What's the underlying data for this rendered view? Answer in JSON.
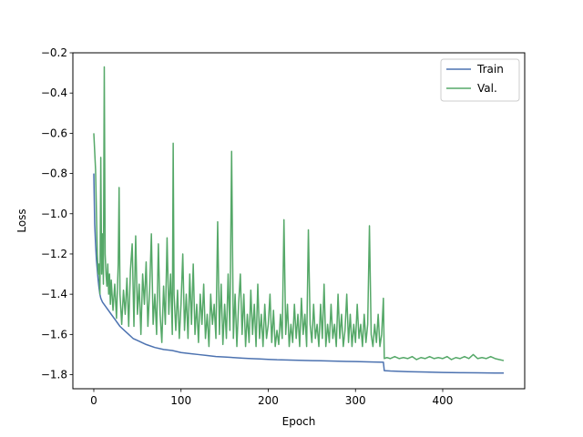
{
  "chart_data": {
    "type": "line",
    "title": "",
    "xlabel": "Epoch",
    "ylabel": "Loss",
    "xlim": [
      -24,
      494
    ],
    "ylim": [
      -1.87,
      -0.2
    ],
    "xticks": [
      0,
      100,
      200,
      300,
      400
    ],
    "yticks": [
      -1.8,
      -1.6,
      -1.4,
      -1.2,
      -1.0,
      -0.8,
      -0.6,
      -0.4,
      -0.2
    ],
    "ytick_labels": [
      "−1.8",
      "−1.6",
      "−1.4",
      "−1.2",
      "−1.0",
      "−0.8",
      "−0.6",
      "−0.4",
      "−0.2"
    ],
    "grid": false,
    "legend_position": "top-right",
    "series": [
      {
        "name": "Train",
        "color": "#4c72b0",
        "points": [
          [
            0,
            -0.8
          ],
          [
            1,
            -1.05
          ],
          [
            2,
            -1.15
          ],
          [
            3,
            -1.23
          ],
          [
            4,
            -1.28
          ],
          [
            5,
            -1.33
          ],
          [
            6,
            -1.37
          ],
          [
            7,
            -1.4
          ],
          [
            8,
            -1.42
          ],
          [
            10,
            -1.44
          ],
          [
            15,
            -1.47
          ],
          [
            20,
            -1.5
          ],
          [
            25,
            -1.53
          ],
          [
            30,
            -1.56
          ],
          [
            35,
            -1.58
          ],
          [
            40,
            -1.6
          ],
          [
            45,
            -1.62
          ],
          [
            50,
            -1.63
          ],
          [
            60,
            -1.65
          ],
          [
            70,
            -1.665
          ],
          [
            80,
            -1.675
          ],
          [
            90,
            -1.68
          ],
          [
            100,
            -1.69
          ],
          [
            110,
            -1.695
          ],
          [
            120,
            -1.7
          ],
          [
            130,
            -1.705
          ],
          [
            140,
            -1.71
          ],
          [
            150,
            -1.712
          ],
          [
            160,
            -1.715
          ],
          [
            170,
            -1.718
          ],
          [
            180,
            -1.72
          ],
          [
            190,
            -1.722
          ],
          [
            200,
            -1.724
          ],
          [
            210,
            -1.726
          ],
          [
            220,
            -1.727
          ],
          [
            230,
            -1.728
          ],
          [
            240,
            -1.729
          ],
          [
            250,
            -1.73
          ],
          [
            260,
            -1.731
          ],
          [
            270,
            -1.732
          ],
          [
            280,
            -1.733
          ],
          [
            290,
            -1.734
          ],
          [
            300,
            -1.735
          ],
          [
            310,
            -1.736
          ],
          [
            320,
            -1.737
          ],
          [
            332,
            -1.738
          ],
          [
            333,
            -1.78
          ],
          [
            340,
            -1.782
          ],
          [
            360,
            -1.785
          ],
          [
            380,
            -1.787
          ],
          [
            400,
            -1.789
          ],
          [
            420,
            -1.79
          ],
          [
            440,
            -1.791
          ],
          [
            460,
            -1.792
          ],
          [
            470,
            -1.792
          ]
        ]
      },
      {
        "name": "Val.",
        "color": "#55a868",
        "points": [
          [
            0,
            -0.6
          ],
          [
            2,
            -0.78
          ],
          [
            4,
            -1.2
          ],
          [
            5,
            -1.3
          ],
          [
            6,
            -1.25
          ],
          [
            7,
            -1.4
          ],
          [
            8,
            -0.72
          ],
          [
            9,
            -1.3
          ],
          [
            10,
            -1.1
          ],
          [
            11,
            -1.35
          ],
          [
            12,
            -0.27
          ],
          [
            13,
            -1.2
          ],
          [
            14,
            -1.3
          ],
          [
            15,
            -1.36
          ],
          [
            16,
            -1.25
          ],
          [
            17,
            -1.4
          ],
          [
            18,
            -1.3
          ],
          [
            19,
            -1.45
          ],
          [
            20,
            -1.33
          ],
          [
            22,
            -1.48
          ],
          [
            24,
            -1.35
          ],
          [
            26,
            -1.52
          ],
          [
            28,
            -1.25
          ],
          [
            29,
            -0.87
          ],
          [
            30,
            -1.4
          ],
          [
            32,
            -1.55
          ],
          [
            34,
            -1.38
          ],
          [
            36,
            -1.5
          ],
          [
            38,
            -1.32
          ],
          [
            40,
            -1.56
          ],
          [
            42,
            -1.28
          ],
          [
            44,
            -1.15
          ],
          [
            46,
            -1.56
          ],
          [
            48,
            -1.11
          ],
          [
            50,
            -1.5
          ],
          [
            52,
            -1.35
          ],
          [
            54,
            -1.6
          ],
          [
            56,
            -1.3
          ],
          [
            58,
            -1.45
          ],
          [
            60,
            -1.24
          ],
          [
            62,
            -1.56
          ],
          [
            64,
            -1.38
          ],
          [
            66,
            -1.1
          ],
          [
            68,
            -1.55
          ],
          [
            70,
            -1.4
          ],
          [
            72,
            -1.6
          ],
          [
            74,
            -1.15
          ],
          [
            76,
            -1.5
          ],
          [
            78,
            -1.64
          ],
          [
            80,
            -1.36
          ],
          [
            82,
            -1.55
          ],
          [
            84,
            -1.12
          ],
          [
            86,
            -1.5
          ],
          [
            88,
            -1.3
          ],
          [
            90,
            -1.6
          ],
          [
            91,
            -0.65
          ],
          [
            92,
            -1.4
          ],
          [
            94,
            -1.58
          ],
          [
            96,
            -1.38
          ],
          [
            98,
            -1.62
          ],
          [
            100,
            -1.45
          ],
          [
            102,
            -1.2
          ],
          [
            104,
            -1.58
          ],
          [
            106,
            -1.4
          ],
          [
            108,
            -1.62
          ],
          [
            110,
            -1.3
          ],
          [
            112,
            -1.55
          ],
          [
            114,
            -1.25
          ],
          [
            116,
            -1.6
          ],
          [
            118,
            -1.45
          ],
          [
            120,
            -1.64
          ],
          [
            122,
            -1.4
          ],
          [
            124,
            -1.55
          ],
          [
            126,
            -1.35
          ],
          [
            128,
            -1.62
          ],
          [
            130,
            -1.5
          ],
          [
            132,
            -1.66
          ],
          [
            134,
            -1.4
          ],
          [
            136,
            -1.55
          ],
          [
            138,
            -1.45
          ],
          [
            140,
            -1.62
          ],
          [
            142,
            -1.04
          ],
          [
            144,
            -1.6
          ],
          [
            146,
            -1.35
          ],
          [
            148,
            -1.65
          ],
          [
            150,
            -1.45
          ],
          [
            152,
            -1.62
          ],
          [
            154,
            -1.3
          ],
          [
            156,
            -1.58
          ],
          [
            158,
            -0.69
          ],
          [
            160,
            -1.62
          ],
          [
            162,
            -1.4
          ],
          [
            164,
            -1.66
          ],
          [
            166,
            -1.45
          ],
          [
            168,
            -1.3
          ],
          [
            170,
            -1.6
          ],
          [
            172,
            -1.4
          ],
          [
            174,
            -1.66
          ],
          [
            176,
            -1.5
          ],
          [
            178,
            -1.64
          ],
          [
            180,
            -1.38
          ],
          [
            182,
            -1.6
          ],
          [
            184,
            -1.45
          ],
          [
            186,
            -1.66
          ],
          [
            188,
            -1.35
          ],
          [
            190,
            -1.62
          ],
          [
            192,
            -1.5
          ],
          [
            194,
            -1.66
          ],
          [
            196,
            -1.45
          ],
          [
            198,
            -1.62
          ],
          [
            200,
            -1.55
          ],
          [
            202,
            -1.4
          ],
          [
            204,
            -1.64
          ],
          [
            206,
            -1.48
          ],
          [
            208,
            -1.66
          ],
          [
            210,
            -1.58
          ],
          [
            212,
            -1.65
          ],
          [
            214,
            -1.5
          ],
          [
            216,
            -1.62
          ],
          [
            218,
            -1.03
          ],
          [
            220,
            -1.6
          ],
          [
            222,
            -1.45
          ],
          [
            224,
            -1.66
          ],
          [
            226,
            -1.55
          ],
          [
            228,
            -1.64
          ],
          [
            230,
            -1.45
          ],
          [
            232,
            -1.62
          ],
          [
            234,
            -1.5
          ],
          [
            236,
            -1.66
          ],
          [
            238,
            -1.42
          ],
          [
            240,
            -1.6
          ],
          [
            242,
            -1.5
          ],
          [
            244,
            -1.66
          ],
          [
            246,
            -1.08
          ],
          [
            248,
            -1.55
          ],
          [
            250,
            -1.64
          ],
          [
            252,
            -1.45
          ],
          [
            254,
            -1.62
          ],
          [
            256,
            -1.55
          ],
          [
            258,
            -1.66
          ],
          [
            260,
            -1.45
          ],
          [
            262,
            -1.62
          ],
          [
            264,
            -1.35
          ],
          [
            266,
            -1.66
          ],
          [
            268,
            -1.55
          ],
          [
            270,
            -1.64
          ],
          [
            272,
            -1.45
          ],
          [
            274,
            -1.62
          ],
          [
            276,
            -1.55
          ],
          [
            278,
            -1.66
          ],
          [
            280,
            -1.4
          ],
          [
            282,
            -1.62
          ],
          [
            284,
            -1.5
          ],
          [
            286,
            -1.66
          ],
          [
            288,
            -1.58
          ],
          [
            290,
            -1.4
          ],
          [
            292,
            -1.64
          ],
          [
            294,
            -1.5
          ],
          [
            296,
            -1.66
          ],
          [
            298,
            -1.55
          ],
          [
            300,
            -1.64
          ],
          [
            302,
            -1.45
          ],
          [
            304,
            -1.62
          ],
          [
            306,
            -1.55
          ],
          [
            308,
            -1.66
          ],
          [
            310,
            -1.5
          ],
          [
            312,
            -1.64
          ],
          [
            314,
            -1.55
          ],
          [
            316,
            -1.06
          ],
          [
            318,
            -1.6
          ],
          [
            320,
            -1.66
          ],
          [
            322,
            -1.55
          ],
          [
            324,
            -1.64
          ],
          [
            326,
            -1.5
          ],
          [
            328,
            -1.66
          ],
          [
            330,
            -1.6
          ],
          [
            332,
            -1.42
          ],
          [
            333,
            -1.72
          ],
          [
            336,
            -1.715
          ],
          [
            340,
            -1.72
          ],
          [
            345,
            -1.71
          ],
          [
            350,
            -1.72
          ],
          [
            355,
            -1.715
          ],
          [
            360,
            -1.72
          ],
          [
            365,
            -1.71
          ],
          [
            370,
            -1.725
          ],
          [
            375,
            -1.715
          ],
          [
            380,
            -1.72
          ],
          [
            385,
            -1.71
          ],
          [
            390,
            -1.72
          ],
          [
            395,
            -1.715
          ],
          [
            400,
            -1.72
          ],
          [
            405,
            -1.71
          ],
          [
            410,
            -1.725
          ],
          [
            415,
            -1.715
          ],
          [
            420,
            -1.72
          ],
          [
            425,
            -1.71
          ],
          [
            430,
            -1.72
          ],
          [
            435,
            -1.7
          ],
          [
            440,
            -1.72
          ],
          [
            445,
            -1.715
          ],
          [
            450,
            -1.72
          ],
          [
            455,
            -1.71
          ],
          [
            460,
            -1.72
          ],
          [
            465,
            -1.725
          ],
          [
            470,
            -1.73
          ]
        ]
      }
    ]
  }
}
